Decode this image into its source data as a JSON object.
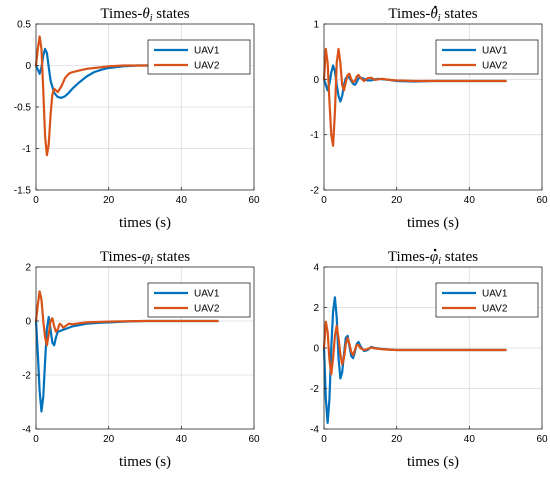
{
  "chart_data": [
    {
      "type": "line",
      "title_prefix": "Times-",
      "title_symbol": "θ",
      "title_sub": "i",
      "title_dot": false,
      "title_suffix": " states",
      "xlabel": "times (s)",
      "xlim": [
        0,
        60
      ],
      "ylim": [
        -1.5,
        0.5
      ],
      "xticks": [
        0,
        20,
        40,
        60
      ],
      "yticks": [
        -1.5,
        -1,
        -0.5,
        0,
        0.5
      ],
      "ytick_labels": [
        "-1.5",
        "-1",
        "-0.5",
        "0",
        "0.5"
      ],
      "grid": true,
      "legend_position": "top-right",
      "series": [
        {
          "name": "UAV1",
          "color": "#0072BD",
          "x": [
            0,
            0.5,
            1,
            1.5,
            2,
            2.5,
            3,
            3.5,
            4,
            5,
            6,
            7,
            8,
            9,
            10,
            12,
            14,
            16,
            18,
            20,
            24,
            28,
            32,
            36,
            40,
            45,
            50
          ],
          "y": [
            0,
            -0.05,
            -0.1,
            -0.02,
            0.12,
            0.2,
            0.15,
            -0.02,
            -0.18,
            -0.33,
            -0.38,
            -0.39,
            -0.37,
            -0.33,
            -0.28,
            -0.2,
            -0.13,
            -0.08,
            -0.05,
            -0.03,
            -0.01,
            0,
            0,
            0,
            0,
            0,
            0
          ]
        },
        {
          "name": "UAV2",
          "color": "#D95319",
          "x": [
            0,
            0.5,
            1,
            1.5,
            2,
            2.5,
            3,
            3.5,
            4,
            4.5,
            5,
            5.5,
            6,
            7,
            8,
            9,
            10,
            12,
            14,
            16,
            18,
            20,
            24,
            28,
            32,
            36,
            40,
            45,
            50
          ],
          "y": [
            0,
            0.2,
            0.35,
            0.2,
            -0.3,
            -0.85,
            -1.08,
            -0.95,
            -0.6,
            -0.35,
            -0.28,
            -0.3,
            -0.32,
            -0.25,
            -0.15,
            -0.1,
            -0.08,
            -0.06,
            -0.04,
            -0.03,
            -0.02,
            -0.01,
            0,
            0,
            0,
            0,
            0,
            0,
            0
          ]
        }
      ]
    },
    {
      "type": "line",
      "title_prefix": "Times-",
      "title_symbol": "θ",
      "title_sub": "i",
      "title_dot": true,
      "title_suffix": " states",
      "xlabel": "times (s)",
      "xlim": [
        0,
        60
      ],
      "ylim": [
        -2,
        1
      ],
      "xticks": [
        0,
        20,
        40,
        60
      ],
      "yticks": [
        -2,
        -1,
        0,
        1
      ],
      "ytick_labels": [
        "-2",
        "-1",
        "0",
        "1"
      ],
      "grid": true,
      "legend_position": "top-right",
      "series": [
        {
          "name": "UAV1",
          "color": "#0072BD",
          "x": [
            0,
            0.5,
            1,
            1.5,
            2,
            2.5,
            3,
            3.5,
            4,
            4.5,
            5,
            5.5,
            6,
            6.5,
            7,
            7.5,
            8,
            8.5,
            9,
            9.5,
            10,
            11,
            12,
            13,
            14,
            15,
            16,
            18,
            20,
            25,
            30,
            40,
            50
          ],
          "y": [
            0,
            -0.1,
            -0.2,
            -0.08,
            0.12,
            0.25,
            0.15,
            -0.1,
            -0.3,
            -0.4,
            -0.3,
            -0.1,
            0.02,
            0.05,
            0.03,
            -0.03,
            -0.08,
            -0.1,
            -0.05,
            0.02,
            0.03,
            0.01,
            -0.02,
            -0.02,
            0,
            0.01,
            0,
            -0.01,
            -0.03,
            -0.04,
            -0.03,
            -0.03,
            -0.03
          ]
        },
        {
          "name": "UAV2",
          "color": "#D95319",
          "x": [
            0,
            0.5,
            1,
            1.5,
            2,
            2.5,
            3,
            3.5,
            4,
            4.5,
            5,
            5.5,
            6,
            6.5,
            7,
            7.5,
            8,
            8.5,
            9,
            9.5,
            10,
            11,
            12,
            13,
            14,
            15,
            16,
            18,
            20,
            25,
            30,
            40,
            50
          ],
          "y": [
            0,
            0.55,
            0.3,
            -0.4,
            -1.0,
            -1.2,
            -0.6,
            0.3,
            0.55,
            0.3,
            -0.1,
            -0.2,
            -0.05,
            0.08,
            0.1,
            0.0,
            -0.05,
            -0.03,
            0.05,
            0.08,
            0.03,
            -0.03,
            0.02,
            0.03,
            -0.01,
            0,
            0.01,
            -0.01,
            -0.02,
            -0.03,
            -0.03,
            -0.03,
            -0.03
          ]
        }
      ]
    },
    {
      "type": "line",
      "title_prefix": "Times-",
      "title_symbol": "φ",
      "title_sub": "i",
      "title_dot": false,
      "title_suffix": " states",
      "xlabel": "times (s)",
      "xlim": [
        0,
        60
      ],
      "ylim": [
        -4,
        2
      ],
      "xticks": [
        0,
        20,
        40,
        60
      ],
      "yticks": [
        -4,
        -2,
        0,
        2
      ],
      "ytick_labels": [
        "-4",
        "-2",
        "0",
        "2"
      ],
      "grid": true,
      "legend_position": "top-right",
      "series": [
        {
          "name": "UAV1",
          "color": "#0072BD",
          "x": [
            0,
            0.5,
            1,
            1.5,
            2,
            2.5,
            3,
            3.5,
            4,
            4.5,
            5,
            5.5,
            6,
            7,
            8,
            9,
            10,
            12,
            14,
            16,
            18,
            20,
            25,
            30,
            35,
            40,
            45,
            50
          ],
          "y": [
            0,
            -1.2,
            -2.6,
            -3.35,
            -2.8,
            -1.5,
            -0.3,
            0.15,
            -0.3,
            -0.8,
            -0.9,
            -0.6,
            -0.4,
            -0.35,
            -0.3,
            -0.25,
            -0.2,
            -0.15,
            -0.1,
            -0.08,
            -0.06,
            -0.05,
            -0.02,
            0,
            0,
            0,
            0,
            0
          ]
        },
        {
          "name": "UAV2",
          "color": "#D95319",
          "x": [
            0,
            0.5,
            1,
            1.5,
            2,
            2.5,
            3,
            3.5,
            4,
            4.5,
            5,
            5.5,
            6,
            6.5,
            7,
            7.5,
            8,
            9,
            10,
            12,
            14,
            16,
            18,
            20,
            25,
            30,
            35,
            40,
            45,
            50
          ],
          "y": [
            0,
            0.6,
            1.1,
            0.8,
            0,
            -0.6,
            -0.9,
            -0.5,
            0,
            0.1,
            -0.2,
            -0.4,
            -0.3,
            -0.1,
            -0.15,
            -0.25,
            -0.2,
            -0.1,
            -0.12,
            -0.08,
            -0.05,
            -0.04,
            -0.03,
            -0.02,
            -0.01,
            0,
            0,
            0,
            0,
            0
          ]
        }
      ]
    },
    {
      "type": "line",
      "title_prefix": "Times-",
      "title_symbol": "φ",
      "title_sub": "i",
      "title_dot": true,
      "title_suffix": " states",
      "xlabel": "times (s)",
      "xlim": [
        0,
        60
      ],
      "ylim": [
        -4,
        4
      ],
      "xticks": [
        0,
        20,
        40,
        60
      ],
      "yticks": [
        -4,
        -2,
        0,
        2,
        4
      ],
      "ytick_labels": [
        "-4",
        "-2",
        "0",
        "2",
        "4"
      ],
      "grid": true,
      "legend_position": "top-right",
      "series": [
        {
          "name": "UAV1",
          "color": "#0072BD",
          "x": [
            0,
            0.5,
            1,
            1.5,
            2,
            2.5,
            3,
            3.5,
            4,
            4.5,
            5,
            5.5,
            6,
            6.5,
            7,
            7.5,
            8,
            8.5,
            9,
            9.5,
            10,
            11,
            12,
            13,
            14,
            16,
            18,
            20,
            25,
            30,
            40,
            50
          ],
          "y": [
            0,
            -2.5,
            -3.7,
            -2.5,
            0,
            1.8,
            2.5,
            1.5,
            -0.5,
            -1.5,
            -1.2,
            -0.3,
            0.5,
            0.6,
            0.1,
            -0.4,
            -0.5,
            -0.2,
            0.2,
            0.3,
            0.1,
            -0.15,
            -0.1,
            0.05,
            0,
            -0.05,
            -0.08,
            -0.1,
            -0.1,
            -0.1,
            -0.1,
            -0.1
          ]
        },
        {
          "name": "UAV2",
          "color": "#D95319",
          "x": [
            0,
            0.5,
            1,
            1.5,
            2,
            2.5,
            3,
            3.5,
            4,
            4.5,
            5,
            5.5,
            6,
            6.5,
            7,
            7.5,
            8,
            8.5,
            9,
            9.5,
            10,
            11,
            12,
            13,
            14,
            16,
            18,
            20,
            25,
            30,
            40,
            50
          ],
          "y": [
            0,
            1.3,
            0.8,
            -0.6,
            -1.3,
            -0.5,
            0.6,
            1.1,
            0.5,
            -0.3,
            -0.8,
            -0.5,
            0.2,
            0.5,
            0.2,
            -0.2,
            -0.35,
            -0.1,
            0.15,
            0.15,
            0,
            -0.1,
            -0.05,
            0.02,
            -0.02,
            -0.06,
            -0.08,
            -0.1,
            -0.1,
            -0.1,
            -0.1,
            -0.1
          ]
        }
      ]
    }
  ]
}
